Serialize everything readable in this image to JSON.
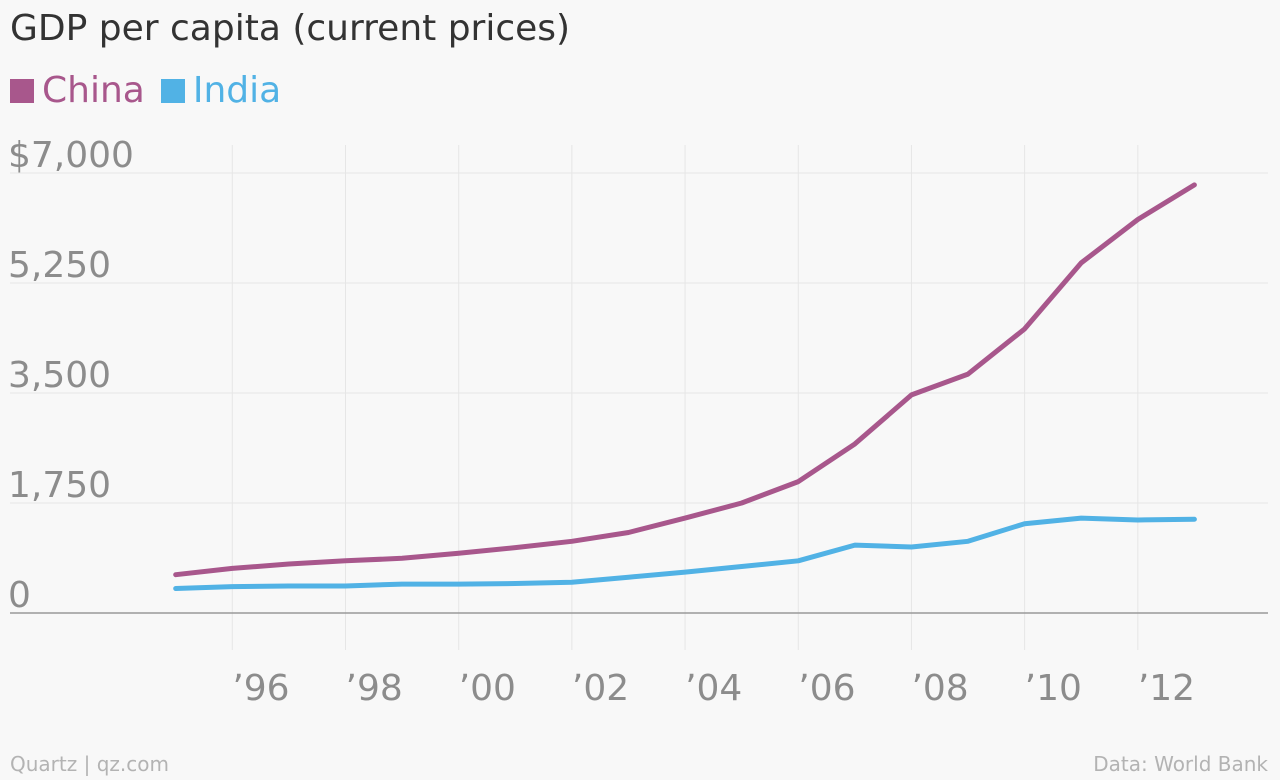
{
  "chart_data": {
    "type": "line",
    "title": "GDP per capita (current prices)",
    "x": [
      1995,
      1996,
      1997,
      1998,
      1999,
      2000,
      2001,
      2002,
      2003,
      2004,
      2005,
      2006,
      2007,
      2008,
      2009,
      2010,
      2011,
      2012,
      2013
    ],
    "series": [
      {
        "name": "China",
        "color": "#a8578c",
        "values": [
          610,
          710,
          780,
          830,
          870,
          950,
          1040,
          1140,
          1280,
          1510,
          1750,
          2090,
          2690,
          3470,
          3800,
          4520,
          5570,
          6260,
          6810
        ]
      },
      {
        "name": "India",
        "color": "#51b2e5",
        "values": [
          390,
          420,
          430,
          430,
          460,
          460,
          470,
          490,
          570,
          650,
          740,
          830,
          1080,
          1050,
          1140,
          1420,
          1510,
          1480,
          1490
        ]
      }
    ],
    "xticks": [
      1996,
      1998,
      2000,
      2002,
      2004,
      2006,
      2008,
      2010,
      2012
    ],
    "xtick_labels": [
      "’96",
      "’98",
      "’00",
      "’02",
      "’04",
      "’06",
      "’08",
      "’10",
      "’12"
    ],
    "yticks": [
      0,
      1750,
      3500,
      5250,
      7000
    ],
    "ytick_labels": [
      "0",
      "1,750",
      "3,500",
      "5,250",
      "$7,000"
    ],
    "ylim": [
      0,
      7000
    ],
    "grid": true,
    "legend_position": "top-left"
  },
  "footer": {
    "source_left": "Quartz | qz.com",
    "source_right": "Data: World Bank"
  }
}
